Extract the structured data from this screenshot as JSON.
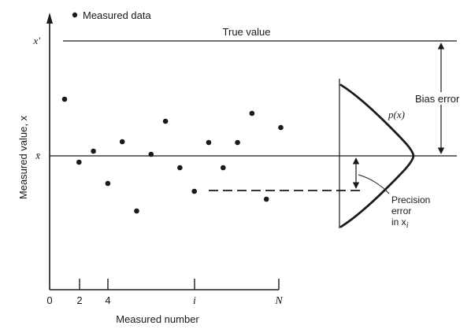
{
  "legend": {
    "label": "Measured data"
  },
  "axes": {
    "ylabel": "Measured value, x",
    "xlabel": "Measured number",
    "y_ticks": [
      "x'",
      "x̄"
    ],
    "x_ticks": [
      "0",
      "2",
      "4",
      "i",
      "N"
    ]
  },
  "annotations": {
    "true_value": "True value",
    "bias_error": "Bias error",
    "distribution": "p(x)",
    "precision_line1": "Precision",
    "precision_line2": "error",
    "precision_line3": "in x",
    "precision_sub": "i"
  },
  "chart_data": {
    "type": "scatter",
    "points": [
      {
        "n": 1,
        "v": 0.72
      },
      {
        "n": 2,
        "v": -0.08
      },
      {
        "n": 3,
        "v": 0.06
      },
      {
        "n": 4,
        "v": -0.35
      },
      {
        "n": 5,
        "v": 0.18
      },
      {
        "n": 6,
        "v": -0.7
      },
      {
        "n": 7,
        "v": 0.02
      },
      {
        "n": 8,
        "v": 0.44
      },
      {
        "n": 9,
        "v": -0.15
      },
      {
        "n": 10,
        "v": -0.45
      },
      {
        "n": 11,
        "v": 0.17
      },
      {
        "n": 12,
        "v": -0.15
      },
      {
        "n": 13,
        "v": 0.17
      },
      {
        "n": 14,
        "v": 0.54
      },
      {
        "n": 15,
        "v": -0.55
      },
      {
        "n": 16,
        "v": 0.36
      }
    ],
    "true_value": 1.5,
    "mean_value": 0.0,
    "highlighted_point": 10
  }
}
